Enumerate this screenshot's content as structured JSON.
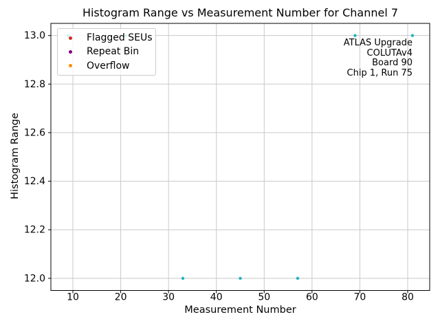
{
  "figure": {
    "background": "#ffffff"
  },
  "chart_data": {
    "type": "scatter",
    "title": "Histogram Range vs Measurement Number for Channel 7",
    "xlabel": "Measurement Number",
    "ylabel": "Histogram Range",
    "xlim": [
      5.4,
      84.6
    ],
    "ylim": [
      11.95,
      13.05
    ],
    "xticks": {
      "values": [
        10,
        20,
        30,
        40,
        50,
        60,
        70,
        80
      ],
      "labels": [
        "10",
        "20",
        "30",
        "40",
        "50",
        "60",
        "70",
        "80"
      ]
    },
    "yticks": {
      "values": [
        12.0,
        12.2,
        12.4,
        12.6,
        12.8,
        13.0
      ],
      "labels": [
        "12.0",
        "12.2",
        "12.4",
        "12.6",
        "12.8",
        "13.0"
      ]
    },
    "grid": true,
    "grid_color": "#c9c9c9",
    "axes_color": "#000000",
    "legend_position": "upper-left",
    "series": [
      {
        "name": "measurements",
        "label": "",
        "color": "#1db5bf",
        "marker_radius": 2.2,
        "in_legend": false,
        "points": [
          [
            9,
            13.0
          ],
          [
            21,
            13.0
          ],
          [
            33,
            12.0
          ],
          [
            45,
            12.0
          ],
          [
            57,
            12.0
          ],
          [
            69,
            13.0
          ],
          [
            81,
            13.0
          ]
        ]
      },
      {
        "name": "flagged-seus",
        "label": "Flagged SEUs",
        "color": "#d62728",
        "marker_radius": 2.5,
        "in_legend": true,
        "points": []
      },
      {
        "name": "repeat-bin",
        "label": "Repeat Bin",
        "color": "#800080",
        "marker_radius": 2.5,
        "in_legend": true,
        "points": []
      },
      {
        "name": "overflow",
        "label": "Overflow",
        "color": "#ff8c00",
        "marker_radius": 2.5,
        "in_legend": true,
        "points": []
      }
    ],
    "annotation": {
      "align": "right",
      "position": "upper-right",
      "lines": [
        "ATLAS Upgrade",
        "COLUTAv4",
        "Board 90",
        "Chip 1, Run 75"
      ]
    }
  }
}
